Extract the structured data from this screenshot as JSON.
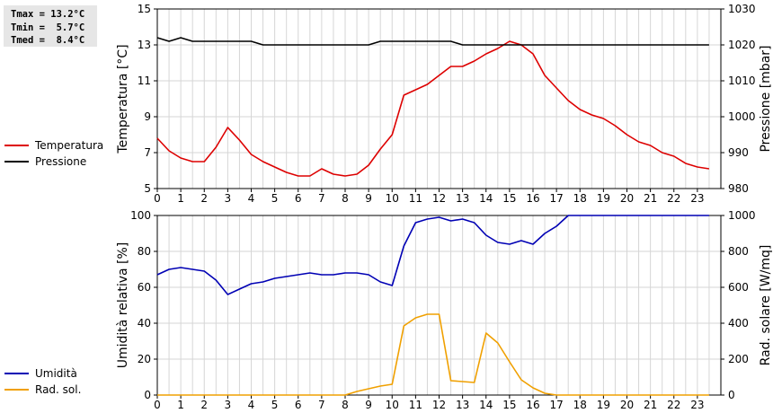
{
  "stats": {
    "tmax": "Tmax = 13.2°C",
    "tmin": "Tmin =  5.7°C",
    "tmed": "Tmed =  8.4°C"
  },
  "chart_data": [
    {
      "type": "line",
      "x_ticks": [
        "0",
        "1",
        "2",
        "3",
        "4",
        "5",
        "6",
        "7",
        "8",
        "9",
        "10",
        "11",
        "12",
        "13",
        "14",
        "15",
        "16",
        "17",
        "18",
        "19",
        "20",
        "21",
        "22",
        "23"
      ],
      "xlim": [
        0,
        24
      ],
      "ylabel": "Temperatura [°C]",
      "ylabel_right": "Pressione [mbar]",
      "ylim": [
        5,
        15
      ],
      "y_ticks": [
        "5",
        "7",
        "9",
        "11",
        "13",
        "15"
      ],
      "ylim_right": [
        980,
        1030
      ],
      "y_ticks_right": [
        "980",
        "990",
        "1000",
        "1010",
        "1020",
        "1030"
      ],
      "grid": true,
      "legend_position": "left",
      "series": [
        {
          "name": "Temperatura",
          "axis": "left",
          "color": "#dd0000",
          "x": [
            0,
            0.5,
            1,
            1.5,
            2,
            2.5,
            3,
            3.5,
            4,
            4.5,
            5,
            5.5,
            6,
            6.5,
            7,
            7.5,
            8,
            8.5,
            9,
            9.5,
            10,
            10.5,
            11,
            11.5,
            12,
            12.5,
            13,
            13.5,
            14,
            14.5,
            15,
            15.5,
            16,
            16.5,
            17,
            17.5,
            18,
            18.5,
            19,
            19.5,
            20,
            20.5,
            21,
            21.5,
            22,
            22.5,
            23,
            23.5
          ],
          "y": [
            7.8,
            7.1,
            6.7,
            6.5,
            6.5,
            7.3,
            8.4,
            7.7,
            6.9,
            6.5,
            6.2,
            5.9,
            5.7,
            5.7,
            6.1,
            5.8,
            5.7,
            5.8,
            6.3,
            7.2,
            8.0,
            10.2,
            10.5,
            10.8,
            11.3,
            11.8,
            11.8,
            12.1,
            12.5,
            12.8,
            13.2,
            13.0,
            12.5,
            11.3,
            10.6,
            9.9,
            9.4,
            9.1,
            8.9,
            8.5,
            8.0,
            7.6,
            7.4,
            7.0,
            6.8,
            6.4,
            6.2,
            6.1
          ]
        },
        {
          "name": "Pressione",
          "axis": "right",
          "color": "#000000",
          "x": [
            0,
            0.5,
            1,
            1.5,
            2,
            2.5,
            3,
            3.5,
            4,
            4.5,
            5,
            5.5,
            6,
            6.5,
            7,
            7.5,
            8,
            8.5,
            9,
            9.5,
            10,
            10.5,
            11,
            11.5,
            12,
            12.5,
            13,
            13.5,
            14,
            14.5,
            15,
            15.5,
            16,
            16.5,
            17,
            17.5,
            18,
            18.5,
            19,
            19.5,
            20,
            20.5,
            21,
            21.5,
            22,
            22.5,
            23,
            23.5
          ],
          "y": [
            1022,
            1021,
            1022,
            1021,
            1021,
            1021,
            1021,
            1021,
            1021,
            1020,
            1020,
            1020,
            1020,
            1020,
            1020,
            1020,
            1020,
            1020,
            1020,
            1021,
            1021,
            1021,
            1021,
            1021,
            1021,
            1021,
            1020,
            1020,
            1020,
            1020,
            1020,
            1020,
            1020,
            1020,
            1020,
            1020,
            1020,
            1020,
            1020,
            1020,
            1020,
            1020,
            1020,
            1020,
            1020,
            1020,
            1020,
            1020
          ]
        }
      ]
    },
    {
      "type": "line",
      "x_ticks": [
        "0",
        "1",
        "2",
        "3",
        "4",
        "5",
        "6",
        "7",
        "8",
        "9",
        "10",
        "11",
        "12",
        "13",
        "14",
        "15",
        "16",
        "17",
        "18",
        "19",
        "20",
        "21",
        "22",
        "23"
      ],
      "xlim": [
        0,
        24
      ],
      "ylabel": "Umidità relativa [%]",
      "ylabel_right": "Rad. solare [W/mq]",
      "ylim": [
        0,
        100
      ],
      "y_ticks": [
        "0",
        "20",
        "40",
        "60",
        "80",
        "100"
      ],
      "ylim_right": [
        0,
        1000
      ],
      "y_ticks_right": [
        "0",
        "200",
        "400",
        "600",
        "800",
        "1000"
      ],
      "grid": true,
      "legend_position": "left",
      "series": [
        {
          "name": "Umidità",
          "axis": "left",
          "color": "#0000b4",
          "x": [
            0,
            0.5,
            1,
            1.5,
            2,
            2.5,
            3,
            3.5,
            4,
            4.5,
            5,
            5.5,
            6,
            6.5,
            7,
            7.5,
            8,
            8.5,
            9,
            9.5,
            10,
            10.5,
            11,
            11.5,
            12,
            12.5,
            13,
            13.5,
            14,
            14.5,
            15,
            15.5,
            16,
            16.5,
            17,
            17.5,
            18,
            18.5,
            19,
            19.5,
            20,
            20.5,
            21,
            21.5,
            22,
            22.5,
            23,
            23.5
          ],
          "y": [
            67,
            70,
            71,
            70,
            69,
            64,
            56,
            59,
            62,
            63,
            65,
            66,
            67,
            68,
            67,
            67,
            68,
            68,
            67,
            63,
            61,
            83,
            96,
            98,
            99,
            97,
            98,
            96,
            89,
            85,
            84,
            86,
            84,
            90,
            94,
            100,
            100,
            100,
            100,
            100,
            100,
            100,
            100,
            100,
            100,
            100,
            100,
            100
          ]
        },
        {
          "name": "Rad. sol.",
          "axis": "right",
          "color": "#f0a000",
          "x": [
            0,
            0.5,
            1,
            1.5,
            2,
            2.5,
            3,
            3.5,
            4,
            4.5,
            5,
            5.5,
            6,
            6.5,
            7,
            7.5,
            8,
            8.5,
            9,
            9.5,
            10,
            10.5,
            11,
            11.5,
            12,
            12.5,
            13,
            13.5,
            14,
            14.5,
            15,
            15.5,
            16,
            16.5,
            17,
            17.5,
            18,
            18.5,
            19,
            19.5,
            20,
            20.5,
            21,
            21.5,
            22,
            22.5,
            23,
            23.5
          ],
          "y": [
            0,
            0,
            0,
            0,
            0,
            0,
            0,
            0,
            0,
            0,
            0,
            0,
            0,
            0,
            0,
            0,
            0,
            20,
            35,
            50,
            60,
            385,
            430,
            450,
            450,
            80,
            75,
            70,
            345,
            290,
            185,
            85,
            40,
            10,
            0,
            0,
            0,
            0,
            0,
            0,
            0,
            0,
            0,
            0,
            0,
            0,
            0,
            0
          ]
        }
      ]
    }
  ]
}
